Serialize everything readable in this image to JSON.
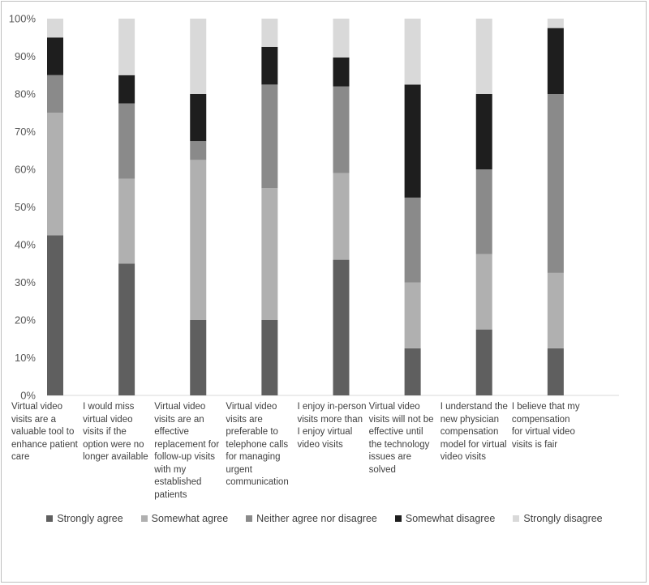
{
  "chart_data": {
    "type": "bar",
    "stacked": true,
    "percent": true,
    "categories": [
      "Virtual video visits are a valuable tool to enhance patient care",
      "I would miss virtual video visits if the option were no longer available",
      "Virtual video visits are an effective replacement for follow-up visits with my established patients",
      "Virtual video visits are preferable to telephone calls for managing urgent communication",
      "I enjoy in-person visits more than I enjoy virtual video visits",
      "Virtual video visits will not be effective until the technology issues are solved",
      "I understand the new physician compensation model for virtual video visits",
      "I believe that my compensation for virtual video visits is fair"
    ],
    "series": [
      {
        "name": "Strongly agree",
        "color": "#5f5f5f",
        "values": [
          42.5,
          35,
          20,
          20,
          36,
          12.5,
          17.5,
          12.5
        ]
      },
      {
        "name": "Somewhat agree",
        "color": "#b0b0b0",
        "values": [
          32.5,
          22.5,
          42.5,
          35,
          23,
          17.5,
          20,
          20
        ]
      },
      {
        "name": "Neither agree nor disagree",
        "color": "#8a8a8a",
        "values": [
          10,
          20,
          5,
          27.5,
          23,
          22.5,
          22.5,
          47.5
        ]
      },
      {
        "name": "Somewhat disagree",
        "color": "#1e1e1e",
        "values": [
          10,
          7.5,
          12.5,
          10,
          7.7,
          30,
          20,
          17.5
        ]
      },
      {
        "name": "Strongly disagree",
        "color": "#d9d9d9",
        "values": [
          5,
          15,
          20,
          7.5,
          10.3,
          17.5,
          20,
          2.5
        ]
      }
    ],
    "yticks": [
      "0%",
      "10%",
      "20%",
      "30%",
      "40%",
      "50%",
      "60%",
      "70%",
      "80%",
      "90%",
      "100%"
    ],
    "ylim": [
      0,
      100
    ],
    "grid": false,
    "legend_position": "bottom"
  }
}
